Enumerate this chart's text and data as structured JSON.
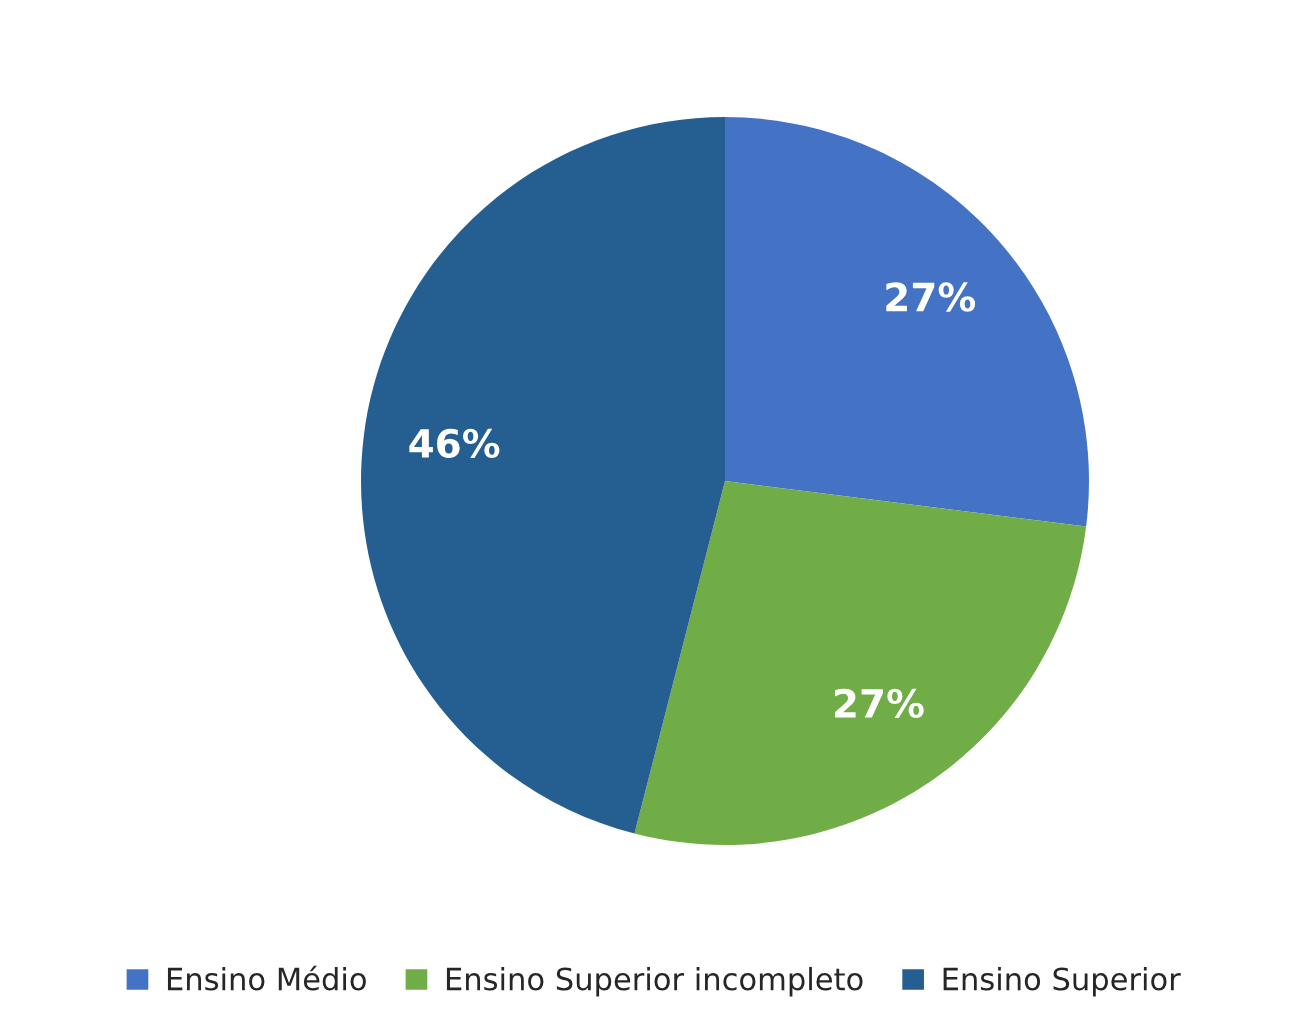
{
  "chart_data": {
    "type": "pie",
    "categories": [
      "Ensino Médio",
      "Ensino Superior incompleto",
      "Ensino Superior"
    ],
    "values": [
      27,
      27,
      46
    ],
    "colors": [
      "#4472c4",
      "#70ad47",
      "#255e91"
    ],
    "value_labels": [
      "27%",
      "27%",
      "46%"
    ],
    "legend": "bottom"
  }
}
